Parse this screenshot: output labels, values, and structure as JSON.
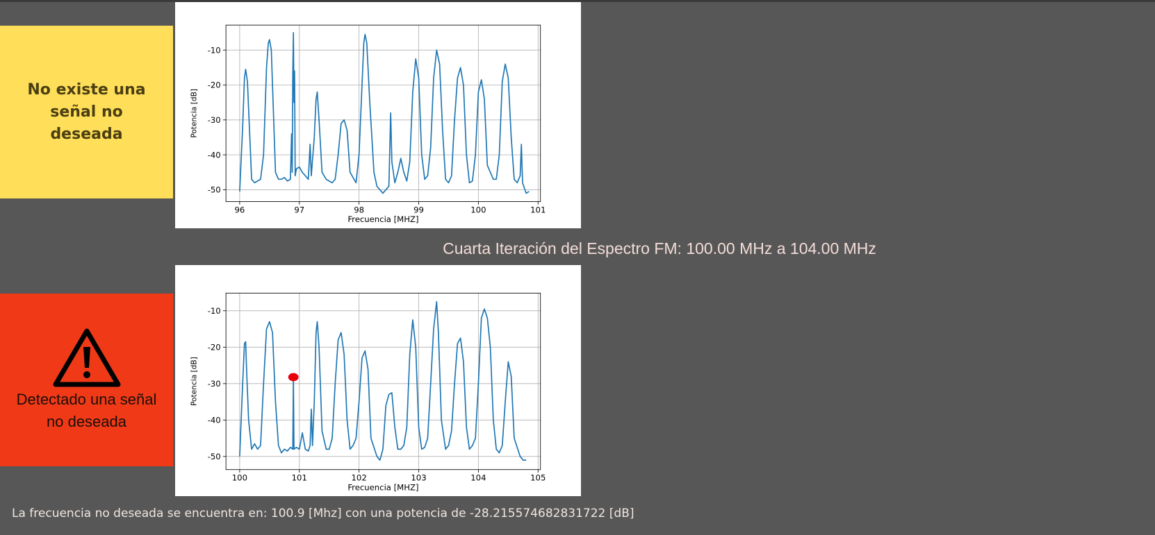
{
  "alerts": [
    {
      "text": "No existe una señal no deseada"
    },
    {
      "text": "Detectado una señal no deseada"
    }
  ],
  "heading": "Cuarta Iteración del Espectro FM: 100.00 MHz a 104.00 MHz",
  "footer": "La frecuencia no deseada se encuentra en: 100.9 [Mhz] con una potencia de -28.215574682831722 [dB]",
  "chart_data": [
    {
      "type": "line",
      "x_label": "Frecuencia [MHZ]",
      "y_label": "Potencia [dB]",
      "xlim": [
        95.77,
        101.04
      ],
      "ylim": [
        -53.4,
        -2.84
      ],
      "xticks": [
        96,
        97,
        98,
        99,
        100,
        101
      ],
      "yticks": [
        -10,
        -20,
        -30,
        -40,
        -50
      ],
      "grid": true,
      "x": [
        96.0,
        96.05,
        96.08,
        96.1,
        96.13,
        96.17,
        96.2,
        96.25,
        96.3,
        96.35,
        96.4,
        96.45,
        96.48,
        96.5,
        96.53,
        96.57,
        96.6,
        96.65,
        96.7,
        96.75,
        96.8,
        96.85,
        96.87,
        96.88,
        96.89,
        96.9,
        96.91,
        96.92,
        96.93,
        96.95,
        97.0,
        97.05,
        97.1,
        97.15,
        97.18,
        97.2,
        97.25,
        97.28,
        97.3,
        97.33,
        97.38,
        97.45,
        97.55,
        97.6,
        97.65,
        97.7,
        97.75,
        97.8,
        97.85,
        97.95,
        98.0,
        98.05,
        98.08,
        98.1,
        98.13,
        98.18,
        98.25,
        98.3,
        98.4,
        98.45,
        98.5,
        98.53,
        98.55,
        98.6,
        98.65,
        98.7,
        98.75,
        98.8,
        98.85,
        98.9,
        98.95,
        99.0,
        99.05,
        99.1,
        99.15,
        99.2,
        99.25,
        99.3,
        99.35,
        99.4,
        99.45,
        99.5,
        99.55,
        99.6,
        99.65,
        99.7,
        99.75,
        99.8,
        99.85,
        99.9,
        99.95,
        100.0,
        100.05,
        100.1,
        100.15,
        100.2,
        100.25,
        100.3,
        100.35,
        100.4,
        100.45,
        100.5,
        100.55,
        100.6,
        100.65,
        100.7,
        100.72,
        100.74,
        100.8,
        100.85
      ],
      "series": [
        {
          "color": "#1f77b4",
          "values": [
            -50.5,
            -32,
            -18,
            -15.5,
            -19,
            -35,
            -47,
            -48,
            -47.5,
            -47,
            -40,
            -15,
            -8,
            -7,
            -10,
            -30,
            -45,
            -47,
            -47,
            -46.5,
            -47.5,
            -47,
            -34,
            -45,
            -17,
            -5,
            -25,
            -16,
            -46,
            -44,
            -43.5,
            -45,
            -46,
            -47,
            -37,
            -46,
            -35,
            -24,
            -22,
            -30,
            -45,
            -47,
            -48,
            -47,
            -40,
            -31,
            -30,
            -33,
            -45,
            -48,
            -40,
            -20,
            -8,
            -5.5,
            -8,
            -25,
            -45,
            -49,
            -51,
            -50,
            -49,
            -28,
            -42,
            -48,
            -45,
            -41,
            -45,
            -47.5,
            -42,
            -22,
            -12.5,
            -18,
            -40,
            -47,
            -46,
            -38,
            -18,
            -10,
            -14,
            -33,
            -47,
            -48,
            -46,
            -30,
            -18,
            -15,
            -20,
            -40,
            -48,
            -47.5,
            -40,
            -22,
            -18.5,
            -24,
            -43,
            -45,
            -47,
            -47,
            -40,
            -19,
            -14,
            -18,
            -35,
            -47,
            -48,
            -46,
            -37,
            -48,
            -51,
            -50.5
          ]
        }
      ]
    },
    {
      "type": "line",
      "x_label": "Frecuencia [MHZ]",
      "y_label": "Potencia [dB]",
      "xlim": [
        99.77,
        105.04
      ],
      "ylim": [
        -53.6,
        -5.15
      ],
      "xticks": [
        100,
        101,
        102,
        103,
        104,
        105
      ],
      "yticks": [
        -10,
        -20,
        -30,
        -40,
        -50
      ],
      "grid": true,
      "x": [
        100.0,
        100.05,
        100.08,
        100.1,
        100.12,
        100.15,
        100.2,
        100.25,
        100.3,
        100.35,
        100.4,
        100.45,
        100.5,
        100.55,
        100.6,
        100.65,
        100.7,
        100.75,
        100.8,
        100.85,
        100.89,
        100.9,
        100.91,
        100.95,
        101.0,
        101.05,
        101.1,
        101.15,
        101.18,
        101.2,
        101.22,
        101.25,
        101.28,
        101.3,
        101.33,
        101.38,
        101.45,
        101.5,
        101.55,
        101.6,
        101.65,
        101.7,
        101.75,
        101.8,
        101.85,
        101.9,
        101.95,
        102.0,
        102.05,
        102.1,
        102.15,
        102.2,
        102.3,
        102.35,
        102.4,
        102.45,
        102.5,
        102.55,
        102.6,
        102.65,
        102.7,
        102.75,
        102.8,
        102.85,
        102.9,
        102.95,
        103.0,
        103.05,
        103.1,
        103.15,
        103.2,
        103.25,
        103.3,
        103.33,
        103.38,
        103.45,
        103.5,
        103.55,
        103.6,
        103.65,
        103.7,
        103.75,
        103.8,
        103.85,
        103.9,
        103.95,
        104.0,
        104.05,
        104.1,
        104.15,
        104.2,
        104.25,
        104.3,
        104.35,
        104.4,
        104.45,
        104.5,
        104.55,
        104.6,
        104.7,
        104.75,
        104.8
      ],
      "series": [
        {
          "color": "#1f77b4",
          "values": [
            -50,
            -30,
            -19,
            -18.5,
            -28,
            -40,
            -48,
            -46.5,
            -48,
            -47,
            -30,
            -15,
            -13,
            -16,
            -35,
            -47,
            -49,
            -48,
            -48.5,
            -47.5,
            -48,
            -28.2,
            -48,
            -47.5,
            -48,
            -43.5,
            -48,
            -48.5,
            -47,
            -37,
            -47,
            -35,
            -16,
            -13,
            -20,
            -43,
            -48,
            -48,
            -45,
            -30,
            -18,
            -16,
            -22,
            -40,
            -48,
            -47,
            -45,
            -35,
            -23,
            -21,
            -26,
            -45,
            -50,
            -51,
            -48,
            -36,
            -33,
            -32.5,
            -42,
            -48,
            -48,
            -47,
            -42,
            -22,
            -12.5,
            -20,
            -42,
            -48,
            -47.5,
            -45,
            -30,
            -15,
            -7.5,
            -16,
            -40,
            -48,
            -47,
            -43,
            -30,
            -19,
            -17.5,
            -24,
            -42,
            -48,
            -47,
            -45,
            -30,
            -12,
            -9.5,
            -12,
            -20,
            -40,
            -48,
            -49,
            -47,
            -35,
            -24,
            -28,
            -45,
            -50,
            -51,
            -51
          ]
        }
      ],
      "marker": {
        "x": 100.9,
        "y": -28.215574682831722,
        "color": "#e8000b"
      }
    }
  ]
}
